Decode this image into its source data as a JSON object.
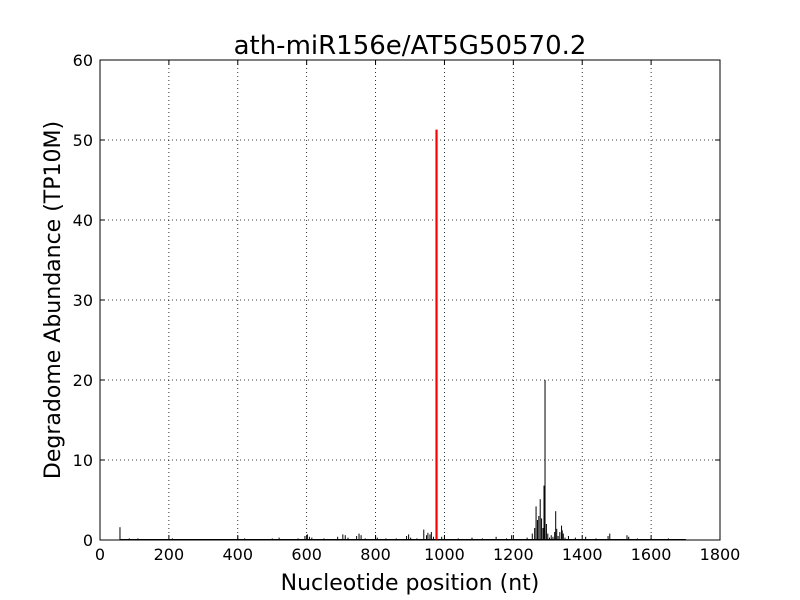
{
  "chart_data": {
    "type": "line",
    "title": "ath-miR156e/AT5G50570.2",
    "xlabel": "Nucleotide position (nt)",
    "ylabel": "Degradome Abundance (TP10M)",
    "xlim": [
      0,
      1800
    ],
    "ylim": [
      0,
      60
    ],
    "xticks": [
      "0",
      "200",
      "400",
      "600",
      "800",
      "1000",
      "1200",
      "1400",
      "1600",
      "1800"
    ],
    "yticks": [
      "0",
      "10",
      "20",
      "30",
      "40",
      "50",
      "60"
    ],
    "grid": true,
    "legend": "none",
    "series": [
      {
        "color": "#000000",
        "x": [
          58,
          85,
          110,
          150,
          210,
          250,
          300,
          360,
          400,
          420,
          460,
          500,
          520,
          545,
          575,
          595,
          602,
          608,
          615,
          650,
          690,
          705,
          712,
          720,
          745,
          752,
          758,
          770,
          800,
          805,
          830,
          860,
          890,
          896,
          902,
          920,
          940,
          948,
          952,
          958,
          962,
          968,
          992,
          1000,
          1040,
          1080,
          1110,
          1150,
          1180,
          1195,
          1240,
          1255,
          1262,
          1266,
          1270,
          1274,
          1278,
          1282,
          1286,
          1289,
          1292,
          1296,
          1300,
          1305,
          1310,
          1315,
          1320,
          1323,
          1326,
          1330,
          1335,
          1340,
          1342,
          1345,
          1350,
          1360,
          1380,
          1410,
          1440,
          1475,
          1480,
          1530,
          1535,
          1560,
          1600,
          1650,
          1700
        ],
        "y": [
          1.6,
          0.2,
          0.2,
          0.1,
          0.2,
          0.1,
          0.1,
          0.1,
          0.3,
          0.2,
          0.1,
          0.2,
          0.3,
          0.1,
          0.2,
          0.5,
          0.7,
          0.4,
          0.3,
          0.2,
          0.4,
          0.7,
          0.6,
          0.3,
          0.5,
          0.8,
          0.6,
          0.2,
          0.5,
          0.3,
          0.2,
          0.2,
          0.5,
          0.7,
          0.3,
          0.2,
          1.3,
          0.6,
          0.9,
          0.7,
          1.0,
          0.4,
          0.4,
          0.3,
          0.2,
          0.3,
          0.2,
          0.4,
          0.2,
          0.6,
          0.3,
          0.8,
          1.5,
          4.2,
          2.5,
          3.0,
          5.1,
          2.7,
          1.5,
          6.8,
          20.0,
          2.0,
          0.8,
          0.3,
          0.6,
          0.4,
          1.0,
          3.6,
          1.4,
          0.5,
          1.0,
          1.8,
          1.2,
          0.8,
          0.3,
          0.5,
          0.3,
          0.4,
          0.2,
          0.5,
          0.8,
          0.6,
          0.4,
          0.2,
          0.2,
          0.2,
          0.1
        ]
      },
      {
        "color": "#ff0000",
        "x": [
          977
        ],
        "y": [
          51.3
        ]
      }
    ]
  }
}
